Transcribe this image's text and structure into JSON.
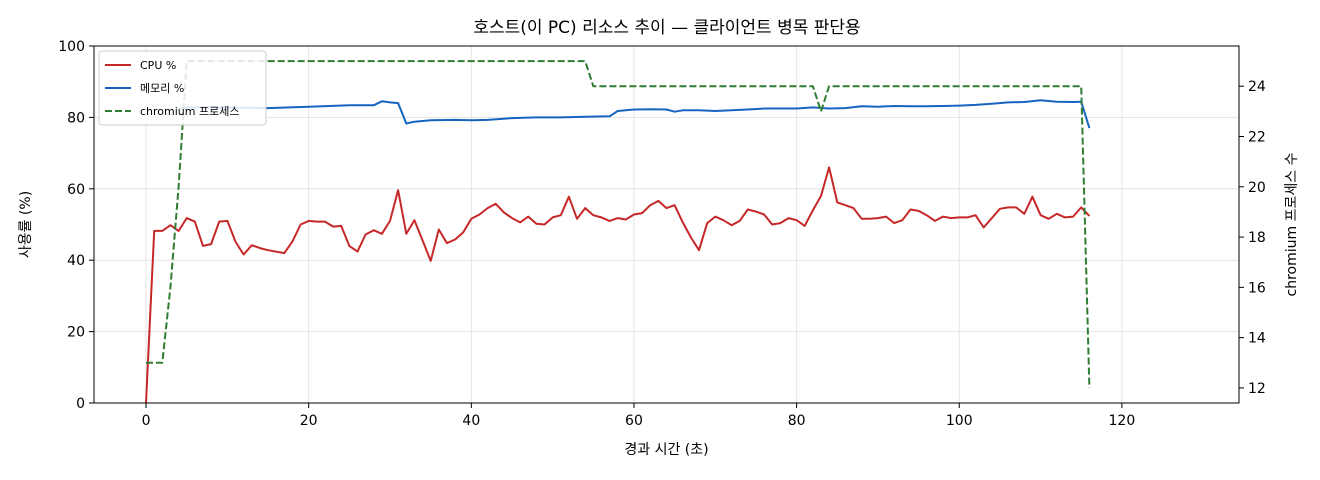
{
  "chart_data": {
    "type": "line",
    "title": "호스트(이 PC) 리소스 추이 — 클라이언트 병목 판단용",
    "xlabel": "경과 시간 (초)",
    "ylabel": "사용률 (%)",
    "y2label": "chromium 프로세스 수",
    "xlim": [
      -6.4,
      134.4
    ],
    "ylim": [
      0,
      100
    ],
    "y2lim": [
      11.4,
      25.6
    ],
    "xticks": [
      0,
      20,
      40,
      60,
      80,
      100,
      120
    ],
    "yticks": [
      0,
      20,
      40,
      60,
      80,
      100
    ],
    "y2ticks": [
      12,
      14,
      16,
      18,
      20,
      22,
      24
    ],
    "grid": true,
    "legend_position": "upper-left",
    "series": [
      {
        "name": "CPU %",
        "axis": "left",
        "color": "#c62828",
        "dashed": false,
        "points": [
          [
            0,
            0
          ],
          [
            1,
            48.2
          ],
          [
            2,
            48.2
          ],
          [
            3,
            49.8
          ],
          [
            4,
            48.2
          ],
          [
            5,
            51.8
          ],
          [
            6,
            50.8
          ],
          [
            7,
            44
          ],
          [
            8,
            44.5
          ],
          [
            9,
            50.8
          ],
          [
            10,
            51
          ],
          [
            11,
            45.2
          ],
          [
            12,
            41.6
          ],
          [
            13,
            44.2
          ],
          [
            14,
            43.4
          ],
          [
            15,
            42.8
          ],
          [
            17,
            42
          ],
          [
            18,
            45.2
          ],
          [
            19,
            50
          ],
          [
            20,
            51
          ],
          [
            21,
            50.8
          ],
          [
            22,
            50.8
          ],
          [
            23,
            49.4
          ],
          [
            24,
            49.6
          ],
          [
            25,
            44
          ],
          [
            26,
            42.4
          ],
          [
            27,
            47.2
          ],
          [
            28,
            48.4
          ],
          [
            29,
            47.4
          ],
          [
            30,
            51
          ],
          [
            31,
            59.6
          ],
          [
            32,
            47.4
          ],
          [
            33,
            51.2
          ],
          [
            34,
            45.6
          ],
          [
            35,
            39.8
          ],
          [
            36,
            48.6
          ],
          [
            37,
            44.8
          ],
          [
            38,
            45.8
          ],
          [
            39,
            47.8
          ],
          [
            40,
            51.6
          ],
          [
            41,
            52.8
          ],
          [
            42,
            54.6
          ],
          [
            43,
            55.8
          ],
          [
            44,
            53.4
          ],
          [
            45,
            51.8
          ],
          [
            46,
            50.6
          ],
          [
            47,
            52.2
          ],
          [
            48,
            50.2
          ],
          [
            49,
            50
          ],
          [
            50,
            52
          ],
          [
            51,
            52.6
          ],
          [
            52,
            57.8
          ],
          [
            53,
            51.6
          ],
          [
            54,
            54.6
          ],
          [
            55,
            52.6
          ],
          [
            56,
            52
          ],
          [
            57,
            51
          ],
          [
            58,
            51.8
          ],
          [
            59,
            51.4
          ],
          [
            60,
            52.8
          ],
          [
            61,
            53.2
          ],
          [
            62,
            55.4
          ],
          [
            63,
            56.6
          ],
          [
            64,
            54.6
          ],
          [
            65,
            55.4
          ],
          [
            66,
            50.6
          ],
          [
            67,
            46.4
          ],
          [
            68,
            42.8
          ],
          [
            69,
            50.4
          ],
          [
            70,
            52.2
          ],
          [
            71,
            51.2
          ],
          [
            72,
            49.8
          ],
          [
            73,
            51
          ],
          [
            74,
            54.2
          ],
          [
            75,
            53.6
          ],
          [
            76,
            52.8
          ],
          [
            77,
            50
          ],
          [
            78,
            50.4
          ],
          [
            79,
            51.8
          ],
          [
            80,
            51.2
          ],
          [
            81,
            49.6
          ],
          [
            82,
            54
          ],
          [
            83,
            58
          ],
          [
            84,
            66
          ],
          [
            85,
            56.2
          ],
          [
            86,
            55.4
          ],
          [
            87,
            54.6
          ],
          [
            88,
            51.6
          ],
          [
            89,
            51.6
          ],
          [
            90,
            51.8
          ],
          [
            91,
            52.2
          ],
          [
            92,
            50.4
          ],
          [
            93,
            51.2
          ],
          [
            94,
            54.2
          ],
          [
            95,
            53.8
          ],
          [
            96,
            52.6
          ],
          [
            97,
            51
          ],
          [
            98,
            52.2
          ],
          [
            99,
            51.8
          ],
          [
            100,
            52
          ],
          [
            101,
            52
          ],
          [
            102,
            52.6
          ],
          [
            103,
            49.2
          ],
          [
            104,
            51.8
          ],
          [
            105,
            54.4
          ],
          [
            106,
            54.8
          ],
          [
            107,
            54.8
          ],
          [
            108,
            53
          ],
          [
            109,
            57.8
          ],
          [
            110,
            52.6
          ],
          [
            111,
            51.6
          ],
          [
            112,
            53
          ],
          [
            113,
            52
          ],
          [
            114,
            52.2
          ],
          [
            115,
            54.8
          ],
          [
            116,
            52.4
          ]
        ]
      },
      {
        "name": "메모리 %",
        "axis": "left",
        "color": "#1565c0",
        "dashed": false,
        "points": [
          [
            4,
            82.5
          ],
          [
            5,
            82.8
          ],
          [
            10,
            82.8
          ],
          [
            15,
            82.6
          ],
          [
            20,
            83
          ],
          [
            25,
            83.4
          ],
          [
            28,
            83.4
          ],
          [
            29,
            84.5
          ],
          [
            30,
            84.2
          ],
          [
            31,
            84
          ],
          [
            32,
            78.3
          ],
          [
            33,
            78.8
          ],
          [
            35,
            79.2
          ],
          [
            38,
            79.3
          ],
          [
            40,
            79.2
          ],
          [
            42,
            79.3
          ],
          [
            45,
            79.8
          ],
          [
            48,
            80
          ],
          [
            51,
            80
          ],
          [
            54,
            80.2
          ],
          [
            57,
            80.3
          ],
          [
            58,
            81.8
          ],
          [
            60,
            82.2
          ],
          [
            62,
            82.3
          ],
          [
            64,
            82.2
          ],
          [
            65,
            81.6
          ],
          [
            66,
            82
          ],
          [
            68,
            82
          ],
          [
            70,
            81.8
          ],
          [
            72,
            82
          ],
          [
            74,
            82.2
          ],
          [
            76,
            82.5
          ],
          [
            78,
            82.5
          ],
          [
            80,
            82.5
          ],
          [
            82,
            82.8
          ],
          [
            84,
            82.5
          ],
          [
            86,
            82.6
          ],
          [
            88,
            83.1
          ],
          [
            90,
            83
          ],
          [
            92,
            83.2
          ],
          [
            94,
            83.1
          ],
          [
            96,
            83.1
          ],
          [
            98,
            83.2
          ],
          [
            100,
            83.3
          ],
          [
            102,
            83.5
          ],
          [
            104,
            83.8
          ],
          [
            106,
            84.2
          ],
          [
            108,
            84.3
          ],
          [
            110,
            84.8
          ],
          [
            112,
            84.4
          ],
          [
            114,
            84.3
          ],
          [
            115,
            84.4
          ],
          [
            116,
            77
          ]
        ]
      },
      {
        "name": "chromium 프로세스",
        "axis": "right",
        "color": "#2e7d32",
        "dashed": true,
        "points": [
          [
            0,
            13
          ],
          [
            1,
            13
          ],
          [
            2,
            13
          ],
          [
            3,
            16
          ],
          [
            4,
            20
          ],
          [
            5,
            25
          ],
          [
            6,
            25
          ],
          [
            54,
            25
          ],
          [
            55,
            24
          ],
          [
            82,
            24
          ],
          [
            83,
            23
          ],
          [
            84,
            24
          ],
          [
            115,
            24
          ],
          [
            116,
            12
          ]
        ]
      }
    ]
  }
}
